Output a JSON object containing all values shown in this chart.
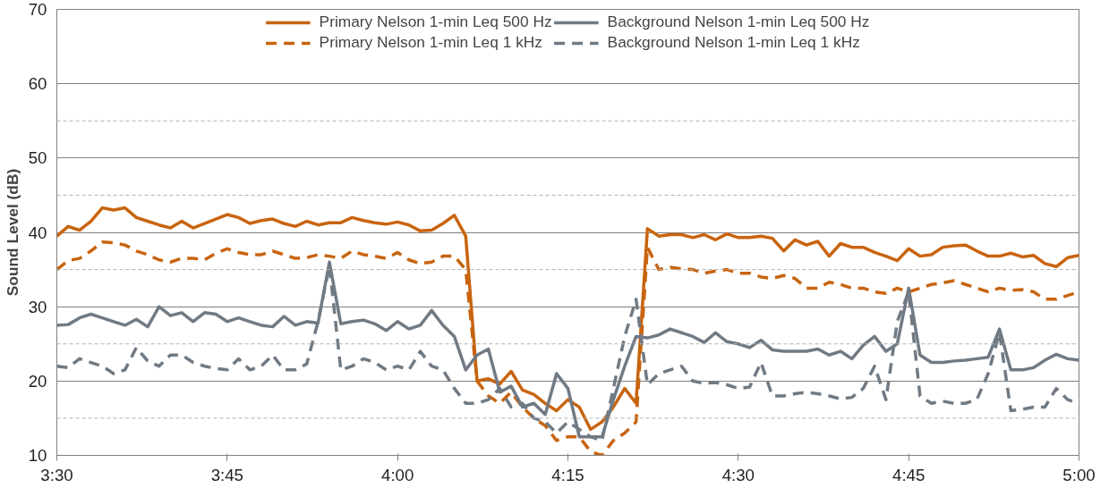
{
  "chart_data": {
    "type": "line",
    "ylabel": "Sound Level (dB)",
    "x": [
      3.5,
      3.5167,
      3.5333,
      3.55,
      3.5667,
      3.5833,
      3.6,
      3.6167,
      3.6333,
      3.65,
      3.6667,
      3.6833,
      3.7,
      3.7167,
      3.7333,
      3.75,
      3.7667,
      3.7833,
      3.8,
      3.8167,
      3.8333,
      3.85,
      3.8667,
      3.8833,
      3.9,
      3.9167,
      3.9333,
      3.95,
      3.9667,
      3.9833,
      4.0,
      4.0167,
      4.0333,
      4.05,
      4.0667,
      4.0833,
      4.1,
      4.1167,
      4.1333,
      4.15,
      4.1667,
      4.1833,
      4.2,
      4.2167,
      4.2333,
      4.25,
      4.2667,
      4.2833,
      4.3,
      4.3167,
      4.3333,
      4.35,
      4.3667,
      4.3833,
      4.4,
      4.4167,
      4.4333,
      4.45,
      4.4667,
      4.4833,
      4.5,
      4.5167,
      4.5333,
      4.55,
      4.5667,
      4.5833,
      4.6,
      4.6167,
      4.6333,
      4.65,
      4.6667,
      4.6833,
      4.7,
      4.7167,
      4.7333,
      4.75,
      4.7667,
      4.7833,
      4.8,
      4.8167,
      4.8333,
      4.85,
      4.8667,
      4.8833,
      4.9,
      4.9167,
      4.9333,
      4.95,
      4.9667,
      4.9833,
      5.0
    ],
    "series": [
      {
        "name": "Primary Nelson 1-min Leq 500 Hz",
        "color": "#c8640f",
        "line_style": "solid",
        "values": [
          39.5,
          40.8,
          40.3,
          41.5,
          43.3,
          43.0,
          43.3,
          42,
          41.5,
          41,
          40.6,
          41.5,
          40.6,
          41.2,
          41.8,
          42.4,
          42,
          41.2,
          41.6,
          41.8,
          41.2,
          40.8,
          41.5,
          41,
          41.3,
          41.3,
          42,
          41.6,
          41.3,
          41.1,
          41.4,
          41,
          40.2,
          40.3,
          41.2,
          42.3,
          39.5,
          20,
          20.3,
          19.6,
          21.3,
          18.8,
          18.2,
          17,
          16,
          17.5,
          16.5,
          13.5,
          14.5,
          16.5,
          19,
          17,
          40.5,
          39.5,
          39.7,
          39.7,
          39.3,
          39.7,
          39,
          39.8,
          39.3,
          39.3,
          39.5,
          39.2,
          37.5,
          39,
          38.3,
          38.8,
          36.8,
          38.5,
          38,
          38,
          37.3,
          36.8,
          36.2,
          37.8,
          36.8,
          37,
          38,
          38.2,
          38.3,
          37.5,
          36.8,
          36.8,
          37.2,
          36.7,
          36.9,
          35.8,
          35.4,
          36.6,
          36.9
        ]
      },
      {
        "name": "Primary Nelson 1-min Leq 1 kHz",
        "color": "#c8640f",
        "line_style": "dashed",
        "values": [
          35,
          36.2,
          36.5,
          37.5,
          38.7,
          38.6,
          38.3,
          37.5,
          37,
          36.3,
          36,
          36.5,
          36.5,
          36.3,
          37.2,
          37.8,
          37.3,
          37,
          37,
          37.5,
          37,
          36.5,
          36.6,
          37,
          36.8,
          36.5,
          37.5,
          37,
          36.8,
          36.5,
          37.3,
          36.3,
          35.8,
          36,
          36.8,
          36.8,
          35,
          20,
          18,
          17,
          18.5,
          16.5,
          15,
          14,
          12,
          12.5,
          12.5,
          10.5,
          10,
          12,
          13,
          14.5,
          38,
          35,
          35.3,
          35.1,
          35,
          34.5,
          34.8,
          35,
          34.5,
          34.5,
          34,
          33.8,
          34.2,
          33.8,
          32.5,
          32.5,
          33.3,
          33,
          32.5,
          32.5,
          32,
          31.8,
          32.5,
          32,
          32.5,
          33,
          33.2,
          33.5,
          33,
          32.5,
          32,
          32.5,
          32.2,
          32.3,
          32,
          31,
          31,
          31.5,
          32
        ]
      },
      {
        "name": "Background Nelson 1-min Leq 500 Hz",
        "color": "#707a84",
        "line_style": "solid",
        "values": [
          27.5,
          27.6,
          28.5,
          29,
          28.5,
          28,
          27.5,
          28.3,
          27.3,
          30,
          28.8,
          29.2,
          28,
          29.2,
          29,
          28,
          28.5,
          28,
          27.5,
          27.3,
          28.7,
          27.5,
          28,
          27.8,
          36,
          27.7,
          28,
          28.2,
          27.7,
          26.8,
          28,
          27,
          27.5,
          29.5,
          27.5,
          26,
          21.5,
          23.5,
          24.3,
          18.5,
          19.3,
          16.5,
          17,
          15.5,
          21,
          19,
          12.5,
          12.5,
          12.5,
          17.5,
          22,
          26,
          25.8,
          26.2,
          27,
          26.5,
          26,
          25.2,
          26.5,
          25.3,
          25,
          24.5,
          25.5,
          24.2,
          24,
          24,
          24,
          24.3,
          23.5,
          24,
          23,
          24.8,
          26,
          24,
          25,
          32.5,
          23.5,
          22.5,
          22.5,
          22.7,
          22.8,
          23,
          23.2,
          27,
          21.5,
          21.5,
          21.8,
          22.8,
          23.6,
          23,
          22.8
        ]
      },
      {
        "name": "Background Nelson 1-min Leq 1 kHz",
        "color": "#707a84",
        "line_style": "dashed",
        "values": [
          22,
          21.8,
          23,
          22.5,
          22,
          21,
          21.5,
          24.5,
          22.7,
          22,
          23.5,
          23.5,
          22.5,
          22,
          21.7,
          21.5,
          23,
          21.5,
          22,
          23.5,
          21.5,
          21.5,
          22.3,
          28,
          35.5,
          21.5,
          22,
          23,
          22.5,
          21.5,
          22,
          21.5,
          24,
          22,
          21.5,
          19,
          17,
          17,
          17.5,
          19,
          16.5,
          17,
          15,
          14.5,
          13,
          14.5,
          13.5,
          12.5,
          12,
          19,
          26,
          31,
          19.5,
          21,
          21.5,
          22,
          20,
          19.7,
          19.8,
          19.5,
          19,
          19.2,
          22.5,
          18,
          18,
          18.3,
          18.5,
          18.3,
          18,
          17.6,
          17.8,
          19,
          22,
          17.5,
          28,
          32,
          18,
          17,
          17.3,
          17,
          17,
          17.5,
          21,
          26.5,
          16,
          16.2,
          16.5,
          16.5,
          19,
          17.5,
          17
        ]
      }
    ],
    "xlim": [
      3.5,
      5.0
    ],
    "xticks": [
      {
        "value": 3.5,
        "label": "3:30"
      },
      {
        "value": 3.75,
        "label": "3:45"
      },
      {
        "value": 4.0,
        "label": "4:00"
      },
      {
        "value": 4.25,
        "label": "4:15"
      },
      {
        "value": 4.5,
        "label": "4:30"
      },
      {
        "value": 4.75,
        "label": "4:45"
      },
      {
        "value": 5.0,
        "label": "5:00"
      }
    ],
    "ylim": [
      10,
      70
    ],
    "yticks": [
      10,
      {
        "value": 15,
        "label": null
      },
      20,
      {
        "value": 25,
        "label": null
      },
      30,
      {
        "value": 35,
        "label": null
      },
      40,
      {
        "value": 45,
        "label": null
      },
      50,
      {
        "value": 55,
        "label": null
      },
      60,
      70
    ],
    "grid": "y",
    "legend": "top",
    "marker": "none"
  }
}
